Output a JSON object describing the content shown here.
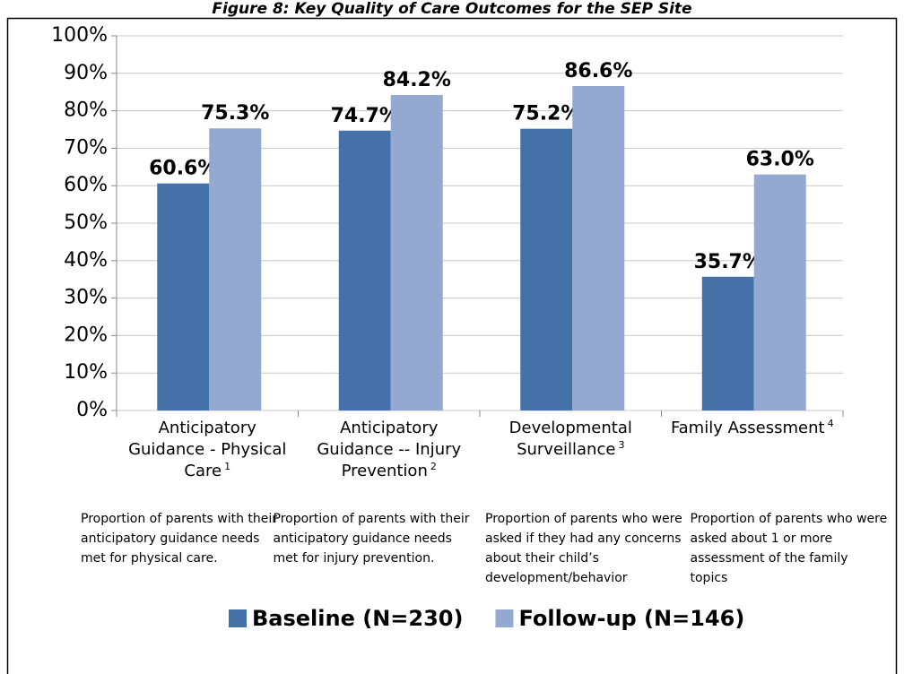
{
  "chart_data": {
    "type": "bar",
    "title": "Figure 8: Key Quality of Care Outcomes for the SEP Site",
    "categories": [
      "Anticipatory Guidance - Physical Care",
      "Anticipatory Guidance -- Injury Prevention",
      "Developmental Surveillance",
      "Family Assessment"
    ],
    "footnotes": [
      "1",
      "2",
      "3",
      "4"
    ],
    "descriptions": [
      "Proportion of parents with their anticipatory guidance needs met for physical care.",
      "Proportion of parents with their anticipatory guidance needs met for injury prevention.",
      "Proportion of parents who were asked if they had any concerns about their child’s development/behavior",
      "Proportion of parents who were asked about 1 or more assessment of the family topics"
    ],
    "series": [
      {
        "name": "Baseline (N=230)",
        "color": "#4472a8",
        "values": [
          60.6,
          74.7,
          75.2,
          35.7
        ],
        "value_labels": [
          "60.6%",
          "74.7%",
          "75.2%",
          "35.7%"
        ]
      },
      {
        "name": "Follow-up (N=146)",
        "color": "#94a9d2",
        "values": [
          75.3,
          84.2,
          86.6,
          63.0
        ],
        "value_labels": [
          "75.3%",
          "84.2%",
          "86.6%",
          "63.0%"
        ]
      }
    ],
    "ylim": [
      0,
      100
    ],
    "yticks": [
      {
        "value": 0,
        "label": "0%"
      },
      {
        "value": 10,
        "label": "10%"
      },
      {
        "value": 20,
        "label": "20%"
      },
      {
        "value": 30,
        "label": "30%"
      },
      {
        "value": 40,
        "label": "40%"
      },
      {
        "value": 50,
        "label": "50%"
      },
      {
        "value": 60,
        "label": "60%"
      },
      {
        "value": 70,
        "label": "70%"
      },
      {
        "value": 80,
        "label": "80%"
      },
      {
        "value": 90,
        "label": "90%"
      },
      {
        "value": 100,
        "label": "100%"
      }
    ],
    "grid": true,
    "legend": "bottom"
  }
}
